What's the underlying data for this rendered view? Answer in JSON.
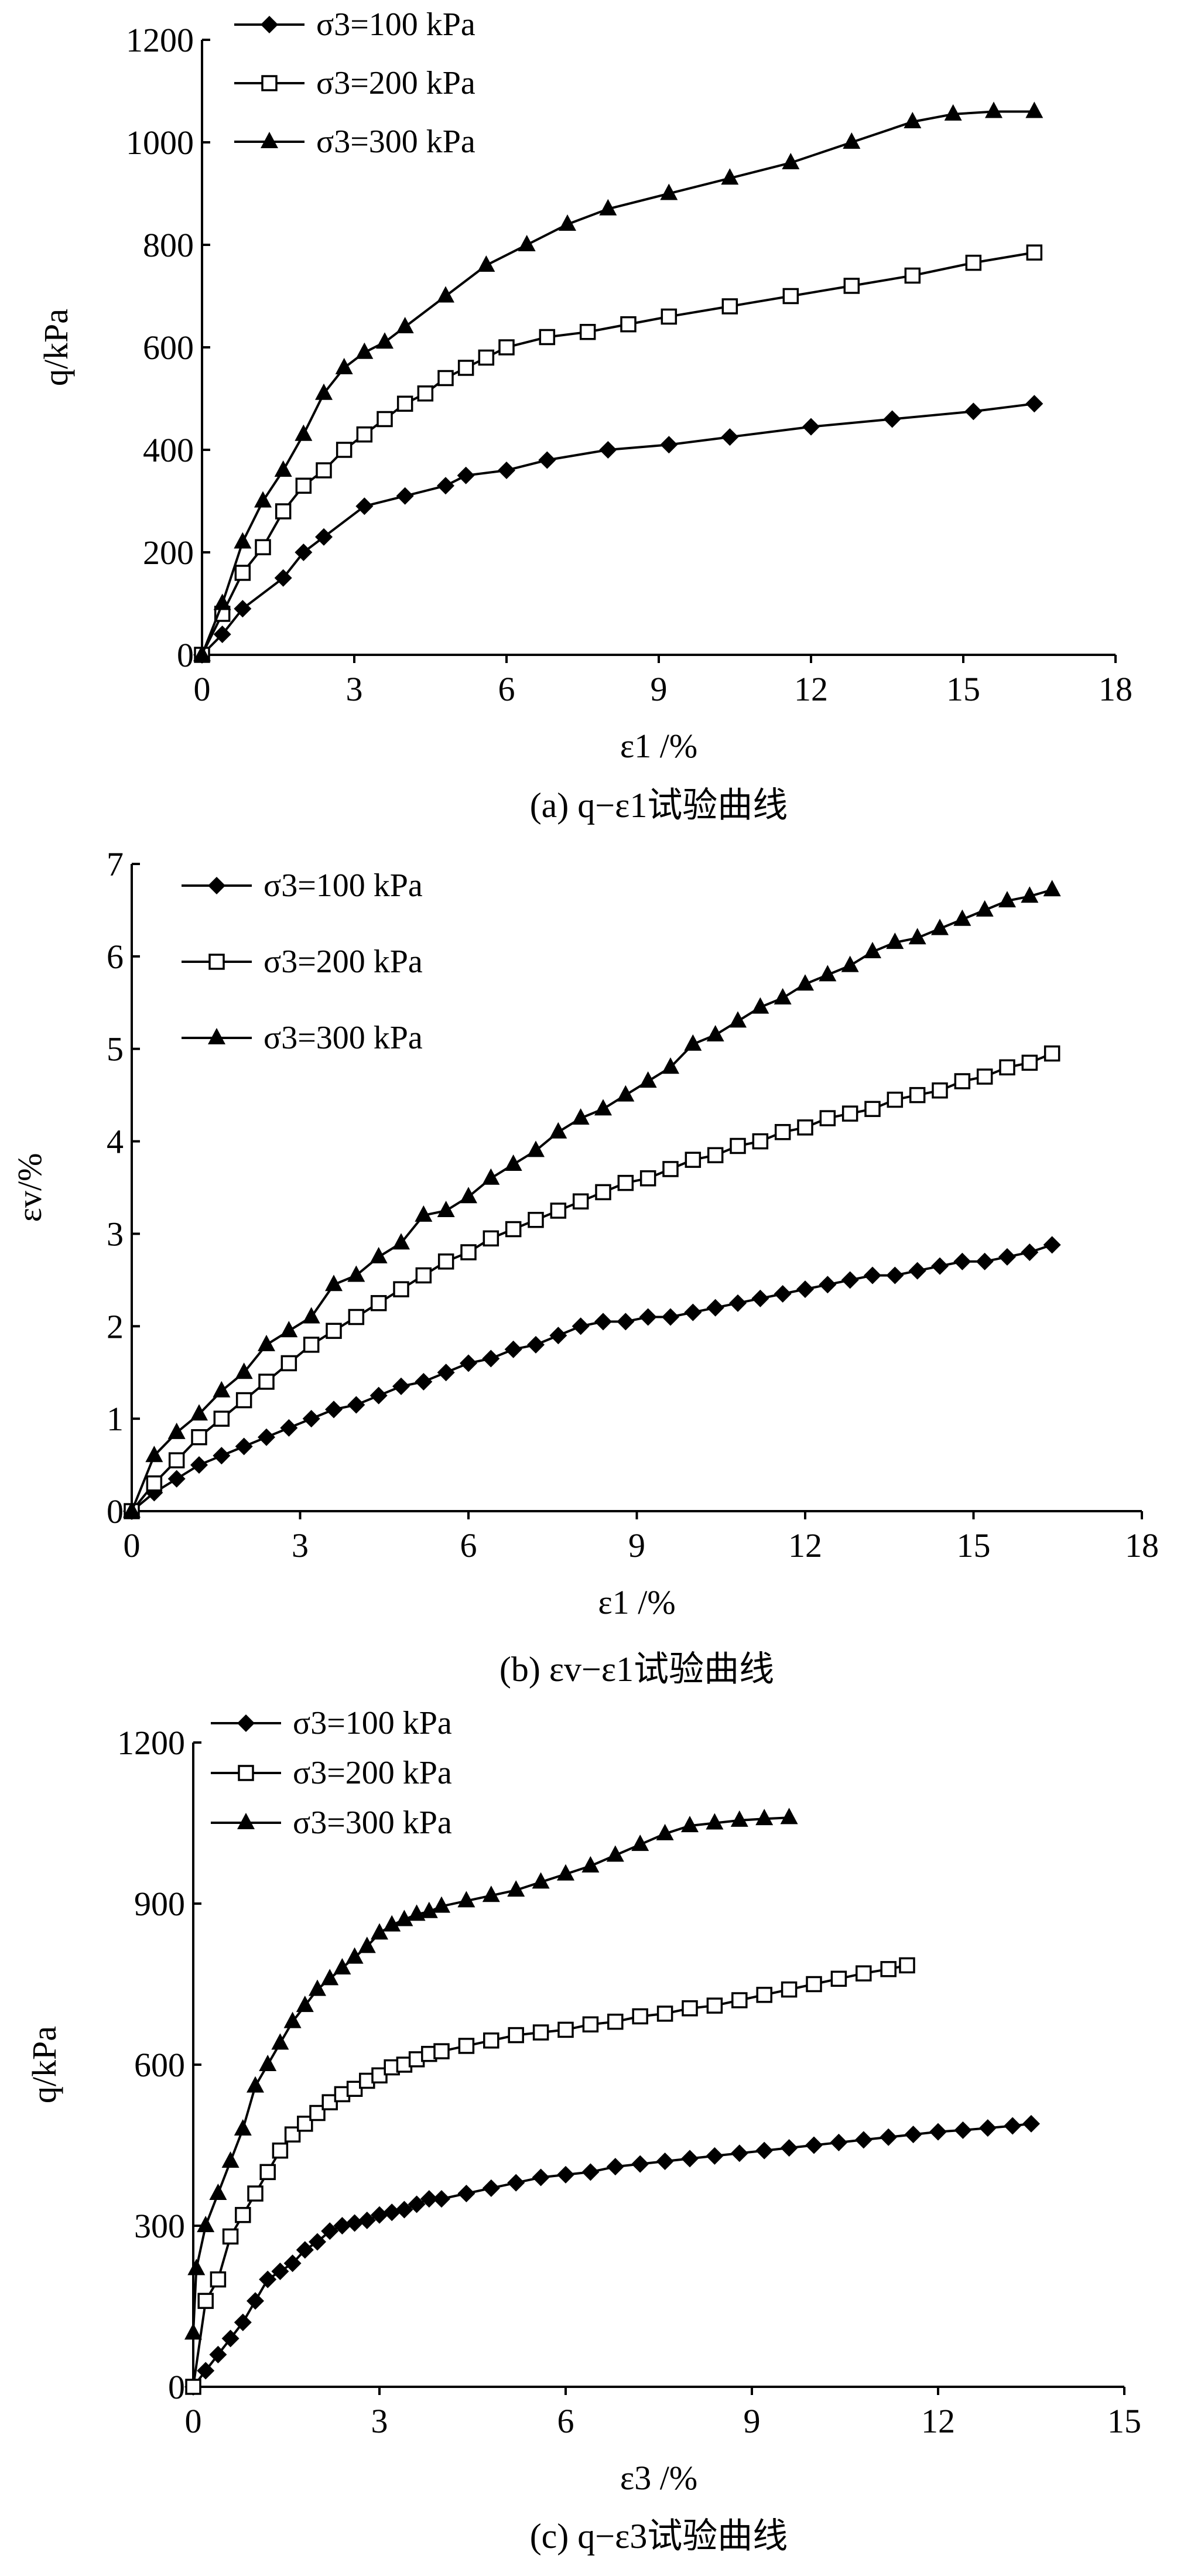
{
  "chart_data": [
    {
      "type": "line",
      "panel": "a",
      "caption": "(a) q−ε1试验曲线",
      "xlabel": "ε1 /%",
      "ylabel": "q/kPa",
      "xlim": [
        0,
        18
      ],
      "ylim": [
        0,
        1200
      ],
      "xticks": [
        "0",
        "3",
        "6",
        "9",
        "12",
        "15",
        "18"
      ],
      "yticks": [
        "0",
        "200",
        "400",
        "600",
        "800",
        "1000",
        "1200"
      ],
      "legend_position": "top-left",
      "series": [
        {
          "name": "σ3=100 kPa",
          "marker": "diamond",
          "x": [
            0,
            0.4,
            0.8,
            1.6,
            2.0,
            2.4,
            3.2,
            4.0,
            4.8,
            5.2,
            6.0,
            6.8,
            8.0,
            9.2,
            10.4,
            12.0,
            13.6,
            15.2,
            16.4
          ],
          "y": [
            0,
            40,
            90,
            150,
            200,
            230,
            290,
            310,
            330,
            350,
            360,
            380,
            400,
            410,
            425,
            445,
            460,
            475,
            490
          ]
        },
        {
          "name": "σ3=200 kPa",
          "marker": "square-open",
          "x": [
            0,
            0.4,
            0.8,
            1.2,
            1.6,
            2.0,
            2.4,
            2.8,
            3.2,
            3.6,
            4.0,
            4.4,
            4.8,
            5.2,
            5.6,
            6.0,
            6.8,
            7.6,
            8.4,
            9.2,
            10.4,
            11.6,
            12.8,
            14.0,
            15.2,
            16.4
          ],
          "y": [
            0,
            80,
            160,
            210,
            280,
            330,
            360,
            400,
            430,
            460,
            490,
            510,
            540,
            560,
            580,
            600,
            620,
            630,
            645,
            660,
            680,
            700,
            720,
            740,
            765,
            785
          ]
        },
        {
          "name": "σ3=300 kPa",
          "marker": "triangle",
          "x": [
            0,
            0.4,
            0.8,
            1.2,
            1.6,
            2.0,
            2.4,
            2.8,
            3.2,
            3.6,
            4.0,
            4.8,
            5.6,
            6.4,
            7.2,
            8.0,
            9.2,
            10.4,
            11.6,
            12.8,
            14.0,
            14.8,
            15.6,
            16.4
          ],
          "y": [
            0,
            100,
            220,
            300,
            360,
            430,
            510,
            560,
            590,
            610,
            640,
            700,
            760,
            800,
            840,
            870,
            900,
            930,
            960,
            1000,
            1040,
            1055,
            1060,
            1060
          ]
        }
      ]
    },
    {
      "type": "line",
      "panel": "b",
      "caption": "(b) εv−ε1试验曲线",
      "xlabel": "ε1 /%",
      "ylabel": "εv/%",
      "xlim": [
        0,
        18
      ],
      "ylim": [
        0,
        7
      ],
      "xticks": [
        "0",
        "3",
        "6",
        "9",
        "12",
        "15",
        "18"
      ],
      "yticks": [
        "0",
        "1",
        "2",
        "3",
        "4",
        "5",
        "6",
        "7"
      ],
      "legend_position": "top-left",
      "series": [
        {
          "name": "σ3=100 kPa",
          "marker": "diamond",
          "x": [
            0,
            0.4,
            0.8,
            1.2,
            1.6,
            2.0,
            2.4,
            2.8,
            3.2,
            3.6,
            4.0,
            4.4,
            4.8,
            5.2,
            5.6,
            6.0,
            6.4,
            6.8,
            7.2,
            7.6,
            8.0,
            8.4,
            8.8,
            9.2,
            9.6,
            10.0,
            10.4,
            10.8,
            11.2,
            11.6,
            12.0,
            12.4,
            12.8,
            13.2,
            13.6,
            14.0,
            14.4,
            14.8,
            15.2,
            15.6,
            16.0,
            16.4
          ],
          "y": [
            0,
            0.2,
            0.35,
            0.5,
            0.6,
            0.7,
            0.8,
            0.9,
            1.0,
            1.1,
            1.15,
            1.25,
            1.35,
            1.4,
            1.5,
            1.6,
            1.65,
            1.75,
            1.8,
            1.9,
            2.0,
            2.05,
            2.05,
            2.1,
            2.1,
            2.15,
            2.2,
            2.25,
            2.3,
            2.35,
            2.4,
            2.45,
            2.5,
            2.55,
            2.55,
            2.6,
            2.65,
            2.7,
            2.7,
            2.75,
            2.8,
            2.88
          ]
        },
        {
          "name": "σ3=200 kPa",
          "marker": "square-open",
          "x": [
            0,
            0.4,
            0.8,
            1.2,
            1.6,
            2.0,
            2.4,
            2.8,
            3.2,
            3.6,
            4.0,
            4.4,
            4.8,
            5.2,
            5.6,
            6.0,
            6.4,
            6.8,
            7.2,
            7.6,
            8.0,
            8.4,
            8.8,
            9.2,
            9.6,
            10.0,
            10.4,
            10.8,
            11.2,
            11.6,
            12.0,
            12.4,
            12.8,
            13.2,
            13.6,
            14.0,
            14.4,
            14.8,
            15.2,
            15.6,
            16.0,
            16.4
          ],
          "y": [
            0,
            0.3,
            0.55,
            0.8,
            1.0,
            1.2,
            1.4,
            1.6,
            1.8,
            1.95,
            2.1,
            2.25,
            2.4,
            2.55,
            2.7,
            2.8,
            2.95,
            3.05,
            3.15,
            3.25,
            3.35,
            3.45,
            3.55,
            3.6,
            3.7,
            3.8,
            3.85,
            3.95,
            4.0,
            4.1,
            4.15,
            4.25,
            4.3,
            4.35,
            4.45,
            4.5,
            4.55,
            4.65,
            4.7,
            4.8,
            4.85,
            4.95
          ]
        },
        {
          "name": "σ3=300 kPa",
          "marker": "triangle",
          "x": [
            0,
            0.4,
            0.8,
            1.2,
            1.6,
            2.0,
            2.4,
            2.8,
            3.2,
            3.6,
            4.0,
            4.4,
            4.8,
            5.2,
            5.6,
            6.0,
            6.4,
            6.8,
            7.2,
            7.6,
            8.0,
            8.4,
            8.8,
            9.2,
            9.6,
            10.0,
            10.4,
            10.8,
            11.2,
            11.6,
            12.0,
            12.4,
            12.8,
            13.2,
            13.6,
            14.0,
            14.4,
            14.8,
            15.2,
            15.6,
            16.0,
            16.4
          ],
          "y": [
            0,
            0.6,
            0.85,
            1.05,
            1.3,
            1.5,
            1.8,
            1.95,
            2.1,
            2.45,
            2.55,
            2.75,
            2.9,
            3.2,
            3.25,
            3.4,
            3.6,
            3.75,
            3.9,
            4.1,
            4.25,
            4.35,
            4.5,
            4.65,
            4.8,
            5.05,
            5.15,
            5.3,
            5.45,
            5.55,
            5.7,
            5.8,
            5.9,
            6.05,
            6.15,
            6.2,
            6.3,
            6.4,
            6.5,
            6.6,
            6.65,
            6.72
          ]
        }
      ]
    },
    {
      "type": "line",
      "panel": "c",
      "caption": "(c) q−ε3试验曲线",
      "xlabel": "ε3 /%",
      "ylabel": "q/kPa",
      "xlim": [
        0,
        15
      ],
      "ylim": [
        0,
        1200
      ],
      "xticks": [
        "0",
        "3",
        "6",
        "9",
        "12",
        "15"
      ],
      "yticks": [
        "0",
        "300",
        "600",
        "900",
        "1200"
      ],
      "legend_position": "top-left",
      "series": [
        {
          "name": "σ3=100 kPa",
          "marker": "diamond",
          "x": [
            0,
            0.2,
            0.4,
            0.6,
            0.8,
            1.0,
            1.2,
            1.4,
            1.6,
            1.8,
            2.0,
            2.2,
            2.4,
            2.6,
            2.8,
            3.0,
            3.2,
            3.4,
            3.6,
            3.8,
            4.0,
            4.4,
            4.8,
            5.2,
            5.6,
            6.0,
            6.4,
            6.8,
            7.2,
            7.6,
            8.0,
            8.4,
            8.8,
            9.2,
            9.6,
            10.0,
            10.4,
            10.8,
            11.2,
            11.6,
            12.0,
            12.4,
            12.8,
            13.2,
            13.5
          ],
          "y": [
            0,
            30,
            60,
            90,
            120,
            160,
            200,
            215,
            230,
            255,
            270,
            290,
            300,
            305,
            310,
            320,
            325,
            330,
            340,
            350,
            350,
            360,
            370,
            380,
            390,
            395,
            400,
            410,
            415,
            420,
            425,
            430,
            435,
            440,
            445,
            450,
            455,
            460,
            465,
            470,
            475,
            478,
            482,
            486,
            490
          ]
        },
        {
          "name": "σ3=200 kPa",
          "marker": "square-open",
          "x": [
            0,
            0.2,
            0.4,
            0.6,
            0.8,
            1.0,
            1.2,
            1.4,
            1.6,
            1.8,
            2.0,
            2.2,
            2.4,
            2.6,
            2.8,
            3.0,
            3.2,
            3.4,
            3.6,
            3.8,
            4.0,
            4.4,
            4.8,
            5.2,
            5.6,
            6.0,
            6.4,
            6.8,
            7.2,
            7.6,
            8.0,
            8.4,
            8.8,
            9.2,
            9.6,
            10.0,
            10.4,
            10.8,
            11.2,
            11.5
          ],
          "y": [
            0,
            160,
            200,
            280,
            320,
            360,
            400,
            440,
            470,
            490,
            510,
            530,
            545,
            555,
            570,
            580,
            595,
            600,
            610,
            620,
            625,
            635,
            645,
            655,
            660,
            665,
            675,
            680,
            690,
            695,
            705,
            710,
            720,
            730,
            740,
            750,
            760,
            770,
            778,
            785
          ]
        },
        {
          "name": "σ3=300 kPa",
          "marker": "triangle",
          "x": [
            0,
            0.05,
            0.2,
            0.4,
            0.6,
            0.8,
            1.0,
            1.2,
            1.4,
            1.6,
            1.8,
            2.0,
            2.2,
            2.4,
            2.6,
            2.8,
            3.0,
            3.2,
            3.4,
            3.6,
            3.8,
            4.0,
            4.4,
            4.8,
            5.2,
            5.6,
            6.0,
            6.4,
            6.8,
            7.2,
            7.6,
            8.0,
            8.4,
            8.8,
            9.2,
            9.6
          ],
          "y": [
            100,
            220,
            300,
            360,
            420,
            480,
            560,
            600,
            640,
            680,
            710,
            740,
            760,
            780,
            800,
            820,
            845,
            860,
            870,
            880,
            885,
            895,
            905,
            915,
            925,
            940,
            955,
            970,
            990,
            1010,
            1030,
            1045,
            1050,
            1055,
            1058,
            1060
          ]
        }
      ]
    }
  ]
}
